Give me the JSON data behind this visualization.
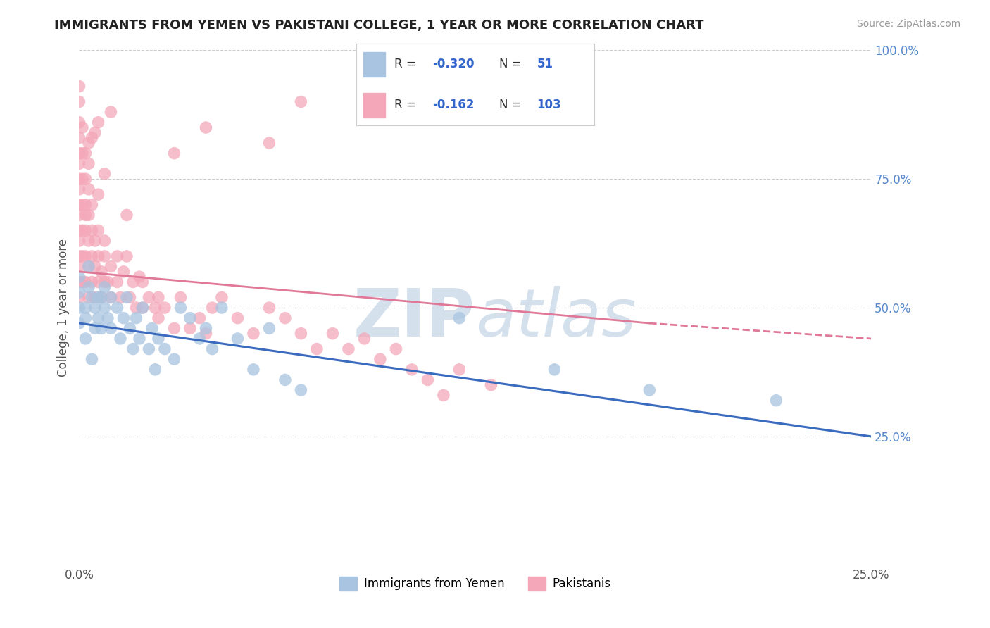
{
  "title": "IMMIGRANTS FROM YEMEN VS PAKISTANI COLLEGE, 1 YEAR OR MORE CORRELATION CHART",
  "source": "Source: ZipAtlas.com",
  "ylabel": "College, 1 year or more",
  "xlim": [
    0.0,
    0.25
  ],
  "ylim": [
    0.0,
    1.0
  ],
  "color_yemen": "#a8c4e0",
  "color_pakistan": "#f4a7b9",
  "line_color_yemen": "#3a6bbf",
  "line_color_pakistan": "#e07898",
  "watermark_color": "#ccdde8",
  "background_color": "#ffffff",
  "grid_color": "#cccccc",
  "scatter_yemen": [
    [
      0.0,
      0.47
    ],
    [
      0.0,
      0.5
    ],
    [
      0.0,
      0.53
    ],
    [
      0.0,
      0.56
    ],
    [
      0.002,
      0.5
    ],
    [
      0.002,
      0.48
    ],
    [
      0.003,
      0.54
    ],
    [
      0.003,
      0.58
    ],
    [
      0.004,
      0.52
    ],
    [
      0.005,
      0.5
    ],
    [
      0.005,
      0.46
    ],
    [
      0.006,
      0.52
    ],
    [
      0.006,
      0.48
    ],
    [
      0.007,
      0.52
    ],
    [
      0.007,
      0.46
    ],
    [
      0.008,
      0.54
    ],
    [
      0.008,
      0.5
    ],
    [
      0.009,
      0.48
    ],
    [
      0.01,
      0.52
    ],
    [
      0.01,
      0.46
    ],
    [
      0.012,
      0.5
    ],
    [
      0.013,
      0.44
    ],
    [
      0.014,
      0.48
    ],
    [
      0.015,
      0.52
    ],
    [
      0.016,
      0.46
    ],
    [
      0.017,
      0.42
    ],
    [
      0.018,
      0.48
    ],
    [
      0.019,
      0.44
    ],
    [
      0.02,
      0.5
    ],
    [
      0.022,
      0.42
    ],
    [
      0.023,
      0.46
    ],
    [
      0.024,
      0.38
    ],
    [
      0.025,
      0.44
    ],
    [
      0.027,
      0.42
    ],
    [
      0.03,
      0.4
    ],
    [
      0.032,
      0.5
    ],
    [
      0.035,
      0.48
    ],
    [
      0.038,
      0.44
    ],
    [
      0.04,
      0.46
    ],
    [
      0.042,
      0.42
    ],
    [
      0.045,
      0.5
    ],
    [
      0.05,
      0.44
    ],
    [
      0.055,
      0.38
    ],
    [
      0.06,
      0.46
    ],
    [
      0.065,
      0.36
    ],
    [
      0.07,
      0.34
    ],
    [
      0.12,
      0.48
    ],
    [
      0.15,
      0.38
    ],
    [
      0.18,
      0.34
    ],
    [
      0.22,
      0.32
    ],
    [
      0.002,
      0.44
    ],
    [
      0.004,
      0.4
    ]
  ],
  "scatter_pakistan": [
    [
      0.0,
      0.52
    ],
    [
      0.0,
      0.55
    ],
    [
      0.0,
      0.58
    ],
    [
      0.0,
      0.6
    ],
    [
      0.0,
      0.63
    ],
    [
      0.0,
      0.65
    ],
    [
      0.0,
      0.68
    ],
    [
      0.0,
      0.7
    ],
    [
      0.0,
      0.73
    ],
    [
      0.0,
      0.75
    ],
    [
      0.0,
      0.78
    ],
    [
      0.0,
      0.8
    ],
    [
      0.0,
      0.83
    ],
    [
      0.0,
      0.86
    ],
    [
      0.0,
      0.9
    ],
    [
      0.001,
      0.55
    ],
    [
      0.001,
      0.6
    ],
    [
      0.001,
      0.65
    ],
    [
      0.001,
      0.7
    ],
    [
      0.001,
      0.75
    ],
    [
      0.001,
      0.8
    ],
    [
      0.001,
      0.85
    ],
    [
      0.002,
      0.55
    ],
    [
      0.002,
      0.6
    ],
    [
      0.002,
      0.65
    ],
    [
      0.002,
      0.7
    ],
    [
      0.002,
      0.75
    ],
    [
      0.002,
      0.8
    ],
    [
      0.003,
      0.52
    ],
    [
      0.003,
      0.58
    ],
    [
      0.003,
      0.63
    ],
    [
      0.003,
      0.68
    ],
    [
      0.003,
      0.73
    ],
    [
      0.003,
      0.78
    ],
    [
      0.004,
      0.55
    ],
    [
      0.004,
      0.6
    ],
    [
      0.004,
      0.65
    ],
    [
      0.004,
      0.7
    ],
    [
      0.005,
      0.52
    ],
    [
      0.005,
      0.58
    ],
    [
      0.005,
      0.63
    ],
    [
      0.006,
      0.55
    ],
    [
      0.006,
      0.6
    ],
    [
      0.006,
      0.65
    ],
    [
      0.007,
      0.52
    ],
    [
      0.007,
      0.57
    ],
    [
      0.008,
      0.55
    ],
    [
      0.008,
      0.6
    ],
    [
      0.009,
      0.55
    ],
    [
      0.01,
      0.52
    ],
    [
      0.01,
      0.58
    ],
    [
      0.012,
      0.6
    ],
    [
      0.012,
      0.55
    ],
    [
      0.013,
      0.52
    ],
    [
      0.014,
      0.57
    ],
    [
      0.015,
      0.6
    ],
    [
      0.016,
      0.52
    ],
    [
      0.017,
      0.55
    ],
    [
      0.018,
      0.5
    ],
    [
      0.019,
      0.56
    ],
    [
      0.02,
      0.5
    ],
    [
      0.02,
      0.55
    ],
    [
      0.022,
      0.52
    ],
    [
      0.024,
      0.5
    ],
    [
      0.025,
      0.48
    ],
    [
      0.025,
      0.52
    ],
    [
      0.027,
      0.5
    ],
    [
      0.03,
      0.46
    ],
    [
      0.032,
      0.52
    ],
    [
      0.035,
      0.46
    ],
    [
      0.038,
      0.48
    ],
    [
      0.04,
      0.45
    ],
    [
      0.042,
      0.5
    ],
    [
      0.045,
      0.52
    ],
    [
      0.05,
      0.48
    ],
    [
      0.055,
      0.45
    ],
    [
      0.06,
      0.5
    ],
    [
      0.065,
      0.48
    ],
    [
      0.07,
      0.45
    ],
    [
      0.075,
      0.42
    ],
    [
      0.08,
      0.45
    ],
    [
      0.085,
      0.42
    ],
    [
      0.09,
      0.44
    ],
    [
      0.095,
      0.4
    ],
    [
      0.1,
      0.42
    ],
    [
      0.105,
      0.38
    ],
    [
      0.11,
      0.36
    ],
    [
      0.115,
      0.33
    ],
    [
      0.04,
      0.85
    ],
    [
      0.03,
      0.8
    ],
    [
      0.01,
      0.88
    ],
    [
      0.005,
      0.84
    ],
    [
      0.06,
      0.82
    ],
    [
      0.07,
      0.9
    ],
    [
      0.0,
      0.93
    ],
    [
      0.002,
      0.68
    ],
    [
      0.006,
      0.86
    ],
    [
      0.008,
      0.76
    ],
    [
      0.003,
      0.82
    ],
    [
      0.004,
      0.83
    ],
    [
      0.006,
      0.72
    ],
    [
      0.008,
      0.63
    ],
    [
      0.015,
      0.68
    ],
    [
      0.12,
      0.38
    ],
    [
      0.13,
      0.35
    ]
  ],
  "line_yemen_y0": 0.47,
  "line_yemen_y1": 0.25,
  "line_pakistan_solid_x0": 0.0,
  "line_pakistan_solid_x1": 0.18,
  "line_pakistan_y0": 0.57,
  "line_pakistan_y1": 0.47,
  "line_pakistan_dash_x0": 0.18,
  "line_pakistan_dash_x1": 0.25,
  "line_pakistan_dash_y0": 0.47,
  "line_pakistan_dash_y1": 0.44
}
